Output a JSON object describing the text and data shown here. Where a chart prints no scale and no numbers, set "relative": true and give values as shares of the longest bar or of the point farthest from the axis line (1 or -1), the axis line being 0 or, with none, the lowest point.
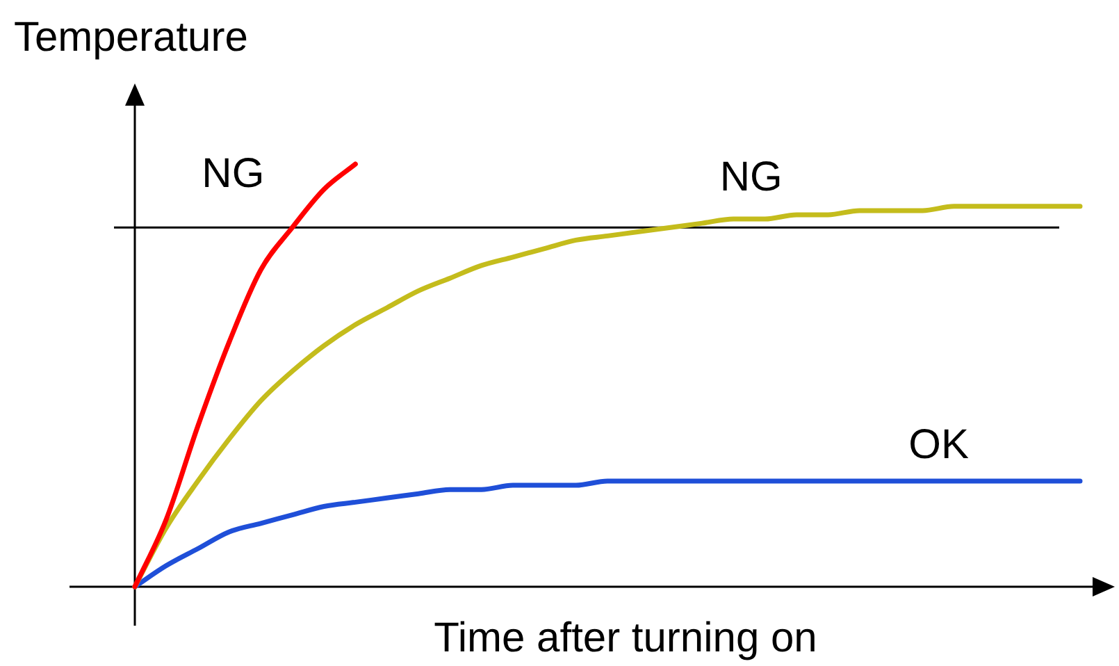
{
  "chart_data": {
    "type": "line",
    "relative": true,
    "xlabel": "Time after turning on",
    "ylabel": "Temperature",
    "categories": [
      null,
      null,
      null,
      null,
      null,
      null,
      null,
      null,
      null,
      null,
      null,
      null,
      null,
      null,
      null,
      null,
      null,
      null,
      null,
      null,
      null,
      null,
      null,
      null,
      null,
      null,
      null,
      null,
      null,
      null,
      null
    ],
    "series": [
      {
        "name": "NG",
        "color": "#ff0000",
        "values": [
          0,
          0.16,
          0.38,
          0.58,
          0.75,
          0.85,
          0.94,
          1,
          null,
          null,
          null,
          null,
          null,
          null,
          null,
          null,
          null,
          null,
          null,
          null,
          null,
          null,
          null,
          null,
          null,
          null,
          null,
          null,
          null,
          null,
          null
        ]
      },
      {
        "name": "NG",
        "color": "#c4bc1c",
        "values": [
          0,
          0.14,
          0.25,
          0.35,
          0.44,
          0.51,
          0.57,
          0.62,
          0.66,
          0.7,
          0.73,
          0.76,
          0.78,
          0.8,
          0.82,
          0.83,
          0.84,
          0.85,
          0.86,
          0.87,
          0.87,
          0.88,
          0.88,
          0.89,
          0.89,
          0.89,
          0.9,
          0.9,
          0.9,
          0.9,
          0.9
        ]
      },
      {
        "name": "OK",
        "color": "#1f4fd8",
        "values": [
          0,
          0.05,
          0.09,
          0.13,
          0.15,
          0.17,
          0.19,
          0.2,
          0.21,
          0.22,
          0.23,
          0.23,
          0.24,
          0.24,
          0.24,
          0.25,
          0.25,
          0.25,
          0.25,
          0.25,
          0.25,
          0.25,
          0.25,
          0.25,
          0.25,
          0.25,
          0.25,
          0.25,
          0.25,
          0.25,
          0.25
        ]
      }
    ],
    "ref_lines": [
      {
        "axis": "y",
        "value": 0.85,
        "color": "#000000"
      }
    ],
    "legend": false,
    "marker": "none",
    "line_style": "solid"
  }
}
